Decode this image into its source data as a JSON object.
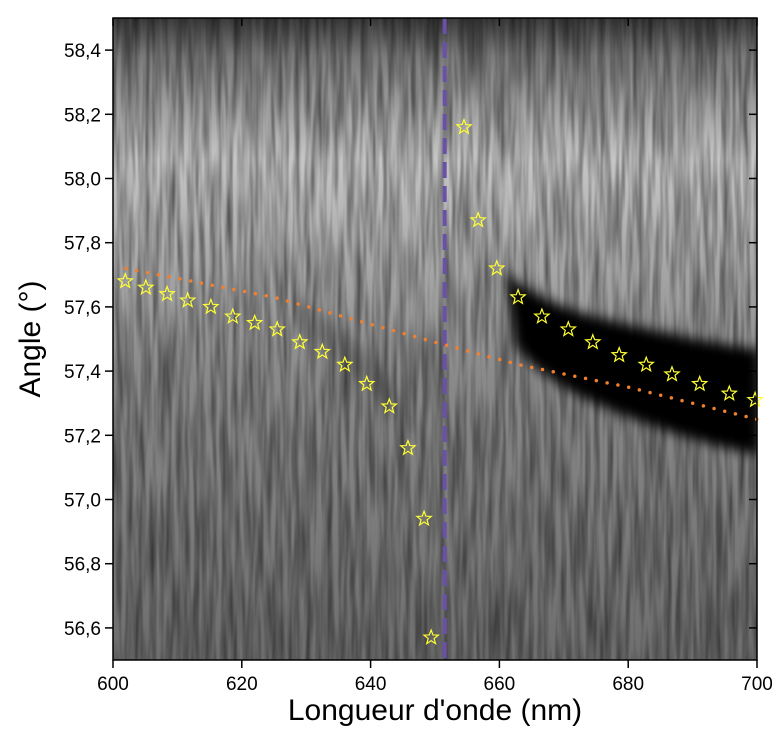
{
  "chart_data": {
    "type": "scatter",
    "xlabel": "Longueur d'onde (nm)",
    "ylabel": "Angle (°)",
    "xlim": [
      600,
      700
    ],
    "ylim": [
      56.5,
      58.5
    ],
    "xticks": [
      600,
      620,
      640,
      660,
      680,
      700
    ],
    "yticks": [
      {
        "value": 56.6,
        "label": "56,6"
      },
      {
        "value": 56.8,
        "label": "56,8"
      },
      {
        "value": 57.0,
        "label": "57,0"
      },
      {
        "value": 57.2,
        "label": "57,2"
      },
      {
        "value": 57.4,
        "label": "57,4"
      },
      {
        "value": 57.6,
        "label": "57,6"
      },
      {
        "value": 57.8,
        "label": "57,8"
      },
      {
        "value": 58.0,
        "label": "58,0"
      },
      {
        "value": 58.2,
        "label": "58,2"
      },
      {
        "value": 58.4,
        "label": "58,4"
      }
    ],
    "series": [
      {
        "color": "#ffff33",
        "marker": "star",
        "x": [
          601.9,
          605.1,
          608.4,
          611.6,
          615.2,
          618.6,
          622.0,
          625.5,
          629.0,
          632.5,
          636.0,
          639.4,
          642.9,
          645.8,
          648.3,
          649.4,
          654.5,
          656.7,
          659.6,
          662.9,
          666.6,
          670.7,
          674.5,
          678.6,
          682.8,
          686.8,
          691.1,
          695.7,
          699.7
        ],
        "values": [
          57.68,
          57.66,
          57.64,
          57.62,
          57.6,
          57.57,
          57.55,
          57.53,
          57.49,
          57.46,
          57.42,
          57.36,
          57.29,
          57.16,
          56.94,
          56.57,
          58.16,
          57.87,
          57.72,
          57.63,
          57.57,
          57.53,
          57.49,
          57.45,
          57.42,
          57.39,
          57.36,
          57.33,
          57.31
        ]
      },
      {
        "color": "#f08030",
        "line_style": "dotted",
        "x": [
          602,
          625,
          650,
          663,
          680,
          700
        ],
        "values": [
          57.72,
          57.63,
          57.49,
          57.42,
          57.35,
          57.25
        ]
      }
    ],
    "vlines": [
      {
        "x": 651.5,
        "color": "#6b50a8",
        "line_style": "dashed"
      }
    ]
  }
}
